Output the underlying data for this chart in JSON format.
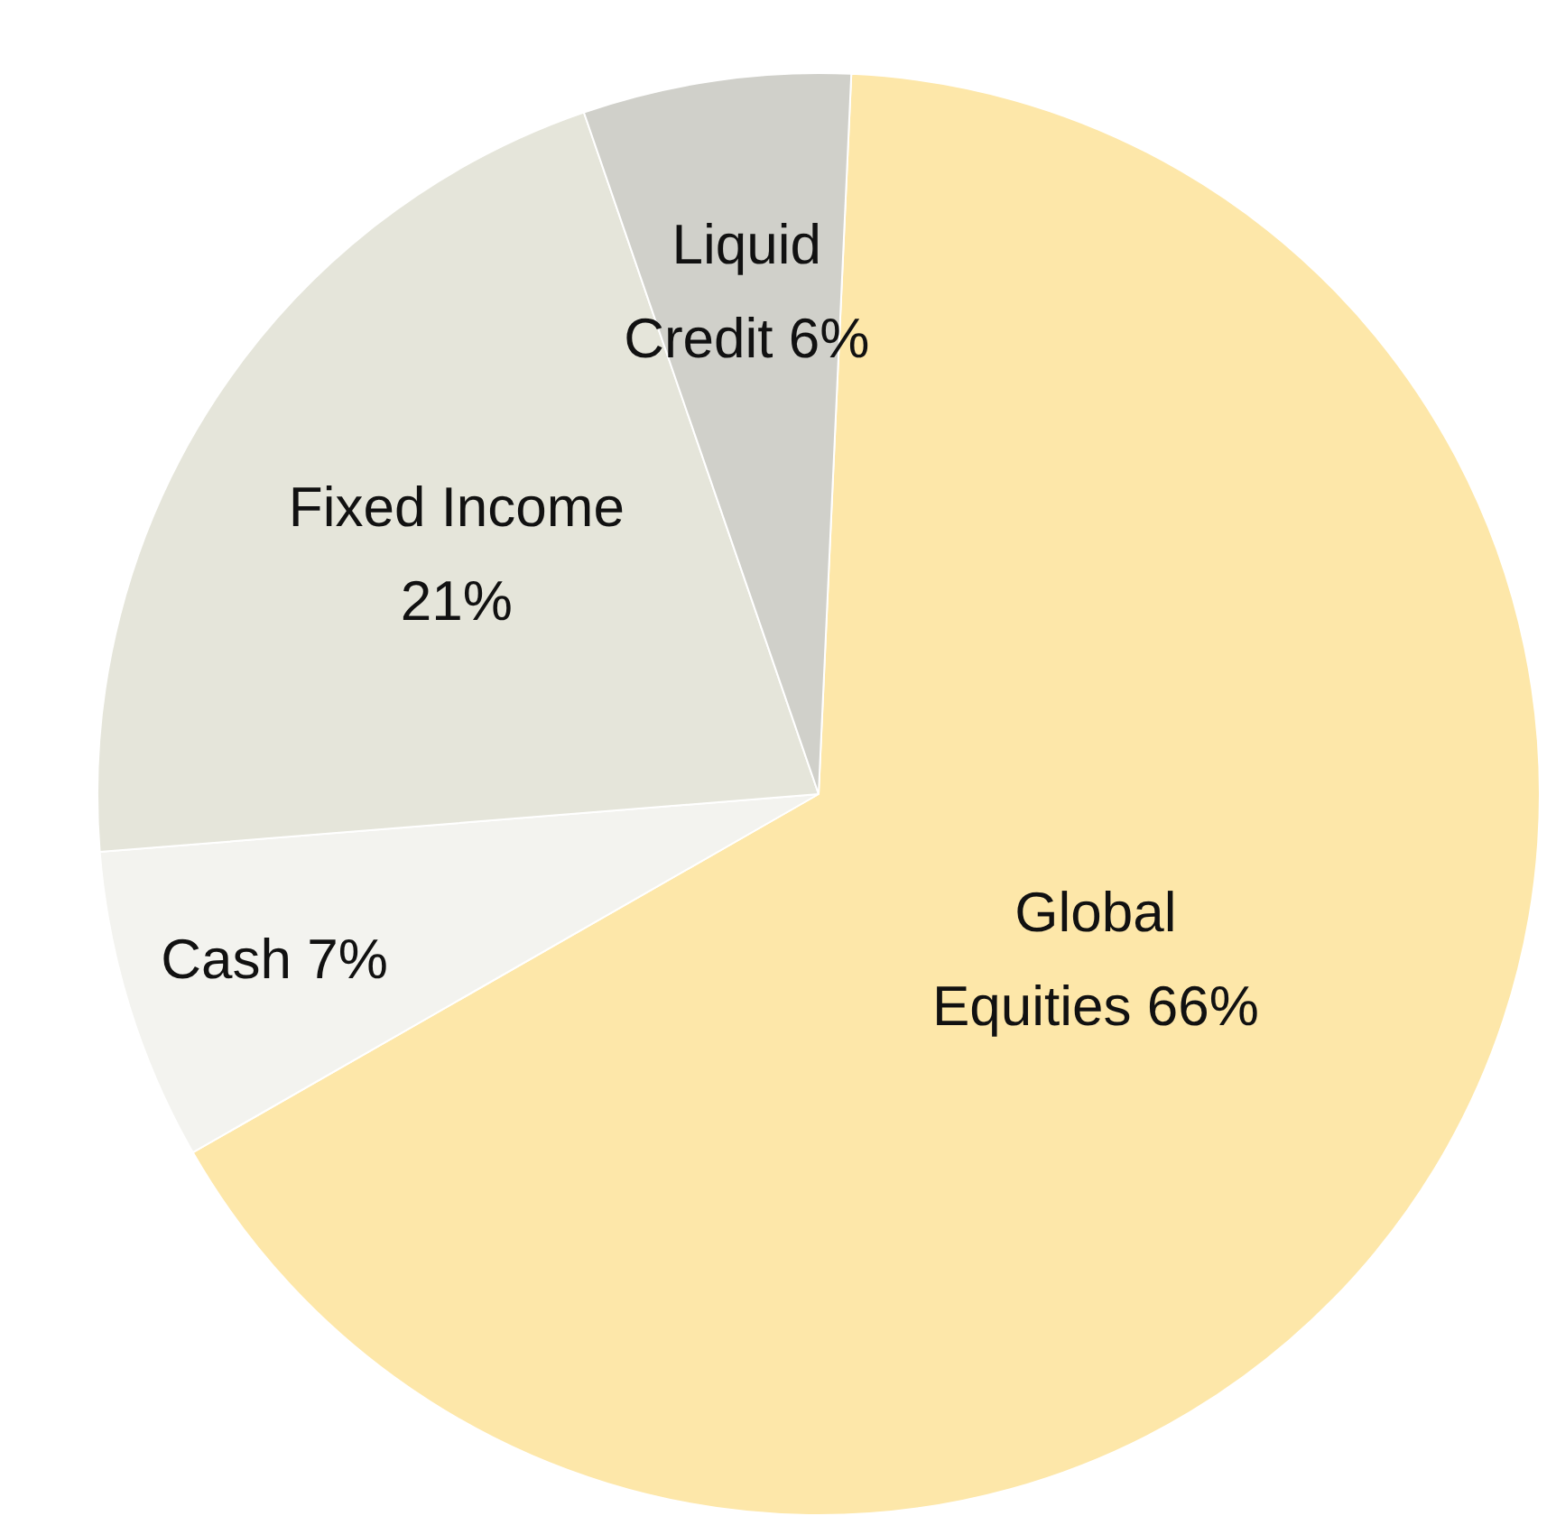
{
  "chart_data": {
    "type": "pie",
    "categories": [
      "Global Equities",
      "Cash",
      "Fixed Income",
      "Liquid Credit"
    ],
    "values": [
      66,
      7,
      21,
      6
    ],
    "colors": [
      "#fde7a9",
      "#f3f3ef",
      "#e5e5da",
      "#d0d0ca"
    ],
    "value_labels": [
      "66%",
      "7%",
      "21%",
      "6%"
    ],
    "legend": false
  }
}
